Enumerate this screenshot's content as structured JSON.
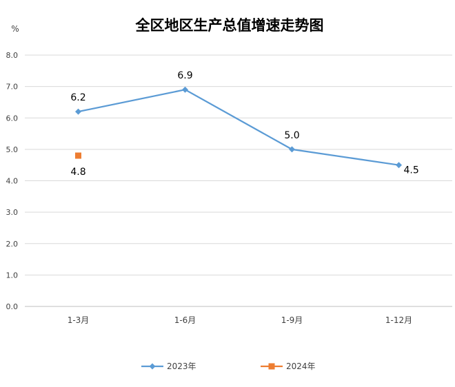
{
  "chart_data": {
    "type": "line",
    "title": "全区地区生产总值增速走势图",
    "unit": "%",
    "categories": [
      "1-3月",
      "1-6月",
      "1-9月",
      "1-12月"
    ],
    "ylim": [
      0,
      8
    ],
    "yticks": [
      "0.0",
      "1.0",
      "2.0",
      "3.0",
      "4.0",
      "5.0",
      "6.0",
      "7.0",
      "8.0"
    ],
    "grid": true,
    "legend_position": "bottom",
    "series": [
      {
        "name": "2023年",
        "values": [
          6.2,
          6.9,
          5.0,
          4.5
        ],
        "labels": [
          "6.2",
          "6.9",
          "5.0",
          "4.5"
        ],
        "color": "#5b9bd5",
        "marker": "diamond"
      },
      {
        "name": "2024年",
        "values": [
          4.8,
          null,
          null,
          null
        ],
        "labels": [
          "4.8",
          "",
          "",
          ""
        ],
        "color": "#ed7d31",
        "marker": "square"
      }
    ]
  }
}
